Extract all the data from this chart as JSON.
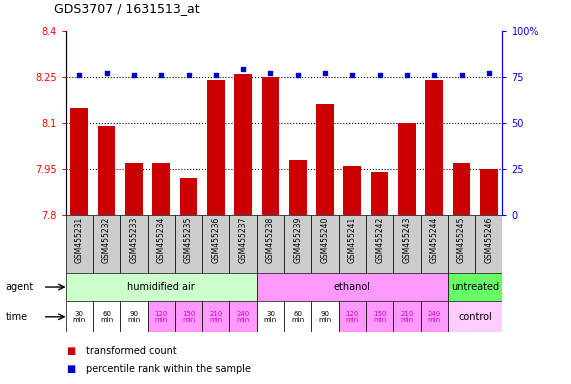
{
  "title": "GDS3707 / 1631513_at",
  "samples": [
    "GSM455231",
    "GSM455232",
    "GSM455233",
    "GSM455234",
    "GSM455235",
    "GSM455236",
    "GSM455237",
    "GSM455238",
    "GSM455239",
    "GSM455240",
    "GSM455241",
    "GSM455242",
    "GSM455243",
    "GSM455244",
    "GSM455245",
    "GSM455246"
  ],
  "bar_values": [
    8.15,
    8.09,
    7.97,
    7.97,
    7.92,
    8.24,
    8.26,
    8.25,
    7.98,
    8.16,
    7.96,
    7.94,
    8.1,
    8.24,
    7.97,
    7.95
  ],
  "percentile_values": [
    76,
    77,
    76,
    76,
    76,
    76,
    79,
    77,
    76,
    77,
    76,
    76,
    76,
    76,
    76,
    77
  ],
  "bar_color": "#cc0000",
  "dot_color": "#0000cc",
  "ylim_left": [
    7.8,
    8.4
  ],
  "ylim_right": [
    0,
    100
  ],
  "yticks_left": [
    7.8,
    7.95,
    8.1,
    8.25,
    8.4
  ],
  "ytick_labels_left": [
    "7.8",
    "7.95",
    "8.1",
    "8.25",
    "8.4"
  ],
  "yticks_right": [
    0,
    25,
    50,
    75,
    100
  ],
  "ytick_labels_right": [
    "0",
    "25",
    "50",
    "75",
    "100%"
  ],
  "hlines": [
    7.95,
    8.1,
    8.25
  ],
  "agent_groups": [
    {
      "label": "humidified air",
      "start": 0,
      "end": 7,
      "color": "#ccffcc"
    },
    {
      "label": "ethanol",
      "start": 7,
      "end": 14,
      "color": "#ff99ff"
    },
    {
      "label": "untreated",
      "start": 14,
      "end": 16,
      "color": "#66ff66"
    }
  ],
  "time_labels": [
    "30\nmin",
    "60\nmin",
    "90\nmin",
    "120\nmin",
    "150\nmin",
    "210\nmin",
    "240\nmin",
    "30\nmin",
    "60\nmin",
    "90\nmin",
    "120\nmin",
    "150\nmin",
    "210\nmin",
    "240\nmin"
  ],
  "time_colors": [
    "#ffffff",
    "#ffffff",
    "#ffffff",
    "#ff99ff",
    "#ff99ff",
    "#ff99ff",
    "#ff99ff",
    "#ffffff",
    "#ffffff",
    "#ffffff",
    "#ff99ff",
    "#ff99ff",
    "#ff99ff",
    "#ff99ff"
  ],
  "time_control_label": "control",
  "time_control_color": "#ffccff",
  "agent_label": "agent",
  "time_label": "time",
  "legend_bar_label": "transformed count",
  "legend_dot_label": "percentile rank within the sample",
  "background_color": "#ffffff",
  "sample_bg_color": "#cccccc"
}
